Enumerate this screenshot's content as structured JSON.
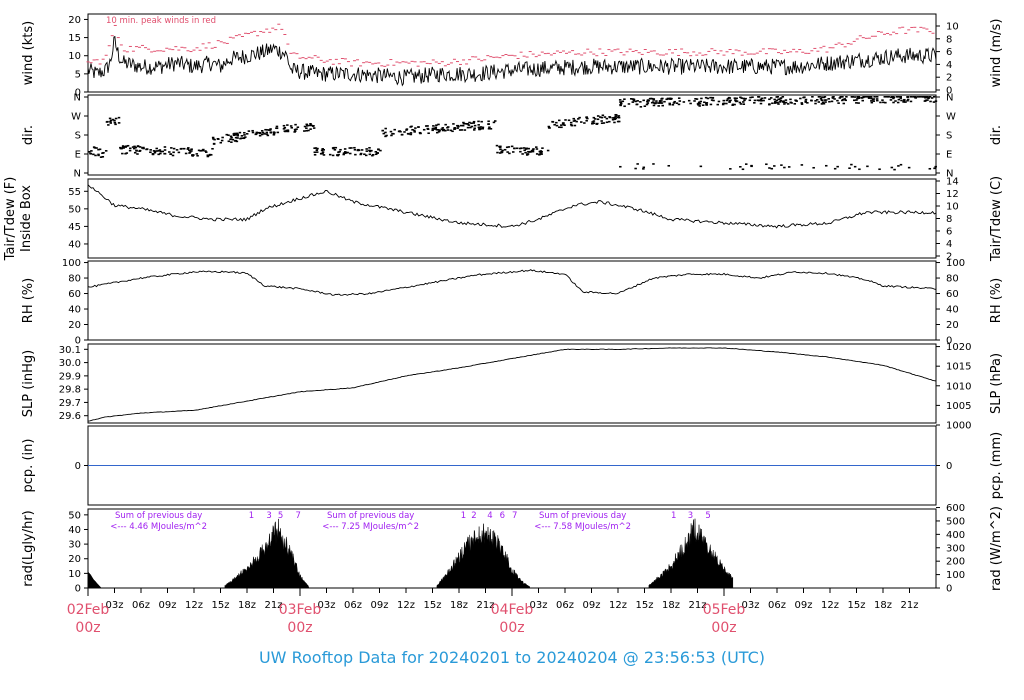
{
  "colors": {
    "accent_red": "#e0506e",
    "purple": "#a020f0",
    "title_blue": "#2a9ad8",
    "precip_line": "#3366cc",
    "trace": "#000000"
  },
  "title_text": "UW Rooftop Data for 20240201  to  20240204 @ 23:56:53  (UTC)",
  "chart_data": [
    {
      "id": "wind",
      "type": "line",
      "ylabel_left": "wind (kts)",
      "ylabel_right": "wind (m/s)",
      "annotation": "10 min. peak winds in red",
      "left_ticks": [
        "0",
        "5",
        "10",
        "15",
        "20"
      ],
      "right_ticks": [
        "0",
        "2",
        "4",
        "6",
        "8",
        "10"
      ],
      "ylim": [
        0,
        21.5
      ],
      "series": [
        {
          "role": "mean",
          "x": [
            0,
            1,
            2,
            2.5,
            3,
            3.5,
            4,
            6,
            8,
            10,
            12,
            14,
            15,
            16,
            18,
            20,
            21,
            22,
            22.5,
            23,
            26,
            30,
            36,
            40,
            44,
            48,
            56,
            64,
            72,
            80,
            84,
            88,
            92,
            96
          ],
          "y": [
            6,
            5,
            6,
            8,
            14,
            10,
            8,
            7,
            7,
            8,
            7,
            8,
            7,
            9,
            10,
            11,
            12,
            11,
            10,
            6,
            5,
            5,
            4,
            5,
            5,
            6,
            7,
            7,
            7,
            7,
            8,
            9,
            10,
            10
          ]
        },
        {
          "role": "peak",
          "x": [
            0,
            2,
            3,
            4,
            8,
            12,
            16,
            20,
            22,
            23,
            26,
            30,
            36,
            40,
            44,
            48,
            56,
            64,
            72,
            80,
            84,
            88,
            92,
            96
          ],
          "y": [
            8,
            9,
            18,
            12,
            12,
            12,
            14,
            17,
            18,
            10,
            9,
            8,
            8,
            8,
            9,
            10,
            11,
            11,
            11,
            11,
            12,
            15,
            17,
            17
          ]
        }
      ]
    },
    {
      "id": "dir",
      "type": "scatter",
      "ylabel_left": "dir.",
      "ylabel_right": "dir.",
      "left_ticks": [
        "N",
        "E",
        "S",
        "W",
        "N"
      ],
      "right_ticks": [
        "N",
        "E",
        "S",
        "W",
        "N"
      ],
      "ylim": [
        0,
        360
      ],
      "segments": [
        {
          "x": [
            0,
            2
          ],
          "y": [
            110,
            85
          ]
        },
        {
          "x": [
            2,
            3.5
          ],
          "y": [
            240,
            250
          ]
        },
        {
          "x": [
            3.5,
            14
          ],
          "y": [
            110,
            95
          ]
        },
        {
          "x": [
            14,
            22
          ],
          "y": [
            150,
            205
          ]
        },
        {
          "x": [
            22,
            25.5
          ],
          "y": [
            210,
            215
          ]
        },
        {
          "x": [
            25.5,
            33
          ],
          "y": [
            100,
            100
          ]
        },
        {
          "x": [
            33,
            46
          ],
          "y": [
            190,
            230
          ]
        },
        {
          "x": [
            46,
            52
          ],
          "y": [
            110,
            100
          ]
        },
        {
          "x": [
            52,
            60
          ],
          "y": [
            230,
            260
          ]
        },
        {
          "x": [
            60,
            96
          ],
          "y": [
            330,
            355
          ]
        }
      ]
    },
    {
      "id": "temp",
      "type": "line",
      "ylabel_left": "Tair/Tdew (F)",
      "ylabel_left2": "Inside Box",
      "ylabel_right": "Tair/Tdew (C)",
      "left_ticks": [
        "40",
        "45",
        "50",
        "55"
      ],
      "right_ticks": [
        "2",
        "4",
        "6",
        "8",
        "10",
        "12",
        "14"
      ],
      "ylim": [
        36,
        58.5
      ],
      "x": [
        0,
        1,
        3,
        6,
        10,
        14,
        18,
        20,
        24,
        27,
        30,
        36,
        42,
        48,
        51,
        55,
        58,
        62,
        66,
        72,
        78,
        84,
        88,
        92,
        96
      ],
      "y": [
        57,
        55,
        51,
        50,
        48,
        47,
        47,
        50,
        53,
        55,
        52,
        49,
        46,
        45,
        47,
        51,
        52,
        50,
        47,
        46,
        45,
        46,
        49,
        49,
        49
      ]
    },
    {
      "id": "rh",
      "type": "line",
      "ylabel_left": "RH (%)",
      "ylabel_right": "RH (%)",
      "left_ticks": [
        "0",
        "20",
        "40",
        "60",
        "80",
        "100"
      ],
      "right_ticks": [
        "0",
        "20",
        "40",
        "60",
        "80",
        "100"
      ],
      "ylim": [
        0,
        102
      ],
      "x": [
        0,
        3,
        6,
        9,
        12,
        16,
        18,
        20,
        24,
        28,
        32,
        36,
        40,
        44,
        48,
        50,
        54,
        56,
        60,
        64,
        68,
        72,
        76,
        80,
        84,
        88,
        90,
        93,
        96
      ],
      "y": [
        68,
        74,
        80,
        84,
        88,
        88,
        86,
        70,
        66,
        58,
        60,
        68,
        76,
        84,
        88,
        90,
        85,
        62,
        60,
        80,
        85,
        85,
        80,
        88,
        86,
        78,
        70,
        68,
        66
      ]
    },
    {
      "id": "slp",
      "type": "line",
      "ylabel_left": "SLP (inHg)",
      "ylabel_right": "SLP (hPa)",
      "left_ticks": [
        "29.6",
        "29.7",
        "29.8",
        "29.9",
        "30.0",
        "30.1"
      ],
      "right_ticks": [
        "1000",
        "1005",
        "1010",
        "1015",
        "1020"
      ],
      "ylim": [
        29.545,
        30.14
      ],
      "x": [
        0,
        2,
        6,
        12,
        18,
        24,
        30,
        36,
        42,
        48,
        54,
        60,
        66,
        72,
        78,
        84,
        90,
        96
      ],
      "y": [
        29.56,
        29.59,
        29.62,
        29.64,
        29.71,
        29.78,
        29.81,
        29.9,
        29.96,
        30.03,
        30.1,
        30.1,
        30.11,
        30.11,
        30.08,
        30.04,
        29.98,
        29.86
      ]
    },
    {
      "id": "pcp",
      "type": "line",
      "ylabel_left": "pcp. (in)",
      "ylabel_right": "pcp. (mm)",
      "left_ticks": [
        "0"
      ],
      "right_ticks": [
        "0"
      ],
      "ylim": [
        -1,
        1
      ],
      "x": [
        0,
        96
      ],
      "y": [
        0,
        0
      ]
    },
    {
      "id": "rad",
      "type": "area",
      "ylabel_left": "rad(Lgly/hr)",
      "ylabel_right": "rad (W/m^2)",
      "left_ticks": [
        "0",
        "10",
        "20",
        "30",
        "40",
        "50"
      ],
      "right_ticks": [
        "0",
        "100",
        "200",
        "300",
        "400",
        "500",
        "600"
      ],
      "ylim": [
        0,
        54
      ],
      "days": [
        {
          "x": [
            15.5,
            16.5,
            18,
            19,
            20,
            21,
            21.5,
            22,
            23,
            24,
            25
          ],
          "y": [
            2,
            7,
            16,
            24,
            32,
            45,
            48,
            42,
            28,
            10,
            1
          ]
        },
        {
          "x": [
            39.5,
            40.5,
            42,
            43,
            44,
            45,
            46,
            47,
            48,
            49,
            50
          ],
          "y": [
            2,
            10,
            25,
            36,
            42,
            45,
            40,
            30,
            15,
            6,
            1
          ]
        },
        {
          "x": [
            63.5,
            64.5,
            66,
            67,
            68,
            68.5,
            69,
            70,
            71,
            72,
            73
          ],
          "y": [
            2,
            8,
            18,
            30,
            38,
            50,
            46,
            35,
            25,
            15,
            8
          ]
        }
      ],
      "pre_midnight": {
        "x": [
          0,
          0.3,
          0.6,
          1.2,
          1.5
        ],
        "y": [
          11,
          9,
          6,
          2,
          0
        ]
      },
      "hour_labels": [
        {
          "x": 18.5,
          "label": "1"
        },
        {
          "x": 20.5,
          "label": "3"
        },
        {
          "x": 21.8,
          "label": "5"
        },
        {
          "x": 23.8,
          "label": "7"
        },
        {
          "x": 42.5,
          "label": "1"
        },
        {
          "x": 43.7,
          "label": "2"
        },
        {
          "x": 45.5,
          "label": "4"
        },
        {
          "x": 46.9,
          "label": "6"
        },
        {
          "x": 48.3,
          "label": "7"
        },
        {
          "x": 66.3,
          "label": "1"
        },
        {
          "x": 68.2,
          "label": "3"
        },
        {
          "x": 70.2,
          "label": "5"
        }
      ],
      "sums": [
        {
          "x": 8,
          "line1": "Sum of previous day",
          "line2": "<--- 4.46 MJoules/m^2"
        },
        {
          "x": 32,
          "line1": "Sum of previous day",
          "line2": "<--- 7.25 MJoules/m^2"
        },
        {
          "x": 56,
          "line1": "Sum of previous day",
          "line2": "<--- 7.58 MJoules/m^2"
        }
      ]
    }
  ],
  "x_axis": {
    "hour_ticks": [
      "03z",
      "06z",
      "09z",
      "12z",
      "15z",
      "18z",
      "21z"
    ],
    "dates": [
      {
        "hour": 0,
        "line1": "02Feb",
        "line2": "00z"
      },
      {
        "hour": 24,
        "line1": "03Feb",
        "line2": "00z"
      },
      {
        "hour": 48,
        "line1": "04Feb",
        "line2": "00z"
      },
      {
        "hour": 72,
        "line1": "05Feb",
        "line2": "00z"
      }
    ]
  }
}
